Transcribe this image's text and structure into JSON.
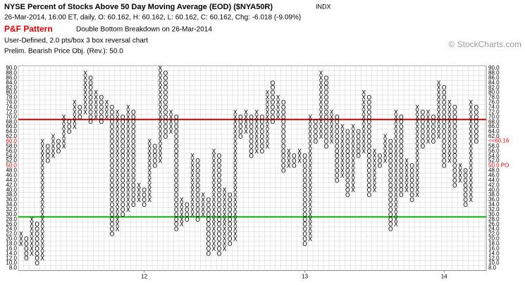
{
  "chart_data": {
    "type": "pointfigure",
    "title": "NYSE Percent of Stocks Above 50 Day Moving Average (EOD) ($NYA50R)",
    "exchange": "INDX",
    "subtitle": "26-Mar-2014, 16:00 ET, daily, O: 60.162, H: 60.162, L: 60.162, C: 60.162, Chg: -6.018 (-9.09%)",
    "pattern_label": "P&F Pattern",
    "pattern": "Double Bottom Breakdown on 26-Mar-2014",
    "settings_text": "User-Defined, 2.0 pts/box 3 box reversal chart",
    "objective_text": "Prelim. Bearish Price Obj. (Rev.): 50.0",
    "copyright": "© StockCharts.com",
    "box_size": 2,
    "ylim": [
      7,
      91
    ],
    "yticks": [
      {
        "value": 90,
        "label": "90.0"
      },
      {
        "value": 88,
        "label": "88.0"
      },
      {
        "value": 86,
        "label": "86.0"
      },
      {
        "value": 84,
        "label": "84.0"
      },
      {
        "value": 82,
        "label": "82.0"
      },
      {
        "value": 80,
        "label": "80.0"
      },
      {
        "value": 78,
        "label": "78.0"
      },
      {
        "value": 76,
        "label": "76.0"
      },
      {
        "value": 74,
        "label": "74.0"
      },
      {
        "value": 72,
        "label": "72.0"
      },
      {
        "value": 70,
        "label": "70.0"
      },
      {
        "value": 68,
        "label": "68.0"
      },
      {
        "value": 66,
        "label": "66.0"
      },
      {
        "value": 64,
        "label": "64.0"
      },
      {
        "value": 62,
        "label": "62.0"
      },
      {
        "value": 60,
        "label": "60.0"
      },
      {
        "value": 58,
        "label": "58.0"
      },
      {
        "value": 56,
        "label": "56.0"
      },
      {
        "value": 54,
        "label": "54.0"
      },
      {
        "value": 52,
        "label": "52.0"
      },
      {
        "value": 50,
        "label": "50.0"
      },
      {
        "value": 48,
        "label": "48.0"
      },
      {
        "value": 46,
        "label": "46.0"
      },
      {
        "value": 44,
        "label": "44.0"
      },
      {
        "value": 42,
        "label": "42.0"
      },
      {
        "value": 40,
        "label": "40.0"
      },
      {
        "value": 38,
        "label": "38.0"
      },
      {
        "value": 36,
        "label": "36.0"
      },
      {
        "value": 34,
        "label": "34.0"
      },
      {
        "value": 32,
        "label": "32.0"
      },
      {
        "value": 30,
        "label": "30.0"
      },
      {
        "value": 28,
        "label": "28.0"
      },
      {
        "value": 26,
        "label": "26.0"
      },
      {
        "value": 24,
        "label": "24.0"
      },
      {
        "value": 22,
        "label": "22.0"
      },
      {
        "value": 20,
        "label": "20.0"
      },
      {
        "value": 18,
        "label": "18.0"
      },
      {
        "value": 16,
        "label": "16.0"
      },
      {
        "value": 14,
        "label": "14.0"
      },
      {
        "value": 12,
        "label": "12.0"
      },
      {
        "value": 10,
        "label": "10.0"
      },
      {
        "value": 8,
        "label": "8.0"
      }
    ],
    "grid": true,
    "highlight": {
      "values": [
        60,
        50
      ],
      "color": "#e00000"
    },
    "reference_lines": [
      {
        "value": 69,
        "color": "#cc0000"
      },
      {
        "value": 29,
        "color": "#00bb00"
      }
    ],
    "annotations": [
      {
        "text": "<<60.16",
        "value": 60.16,
        "color": "#e00000"
      },
      {
        "text": "50.0 PO",
        "value": 50,
        "color": "#e00000"
      }
    ],
    "x_labels": [
      {
        "label": "12",
        "column": 23
      },
      {
        "label": "13",
        "column": 53
      },
      {
        "label": "14",
        "column": 79
      }
    ],
    "columns": [
      {
        "type": "X",
        "low": 18,
        "high": 22
      },
      {
        "type": "O",
        "low": 12,
        "high": 20
      },
      {
        "type": "X",
        "low": 14,
        "high": 28
      },
      {
        "type": "O",
        "low": 10,
        "high": 26
      },
      {
        "type": "X",
        "low": 12,
        "high": 60
      },
      {
        "type": "O",
        "low": 52,
        "high": 58
      },
      {
        "type": "X",
        "low": 54,
        "high": 62
      },
      {
        "type": "O",
        "low": 56,
        "high": 60
      },
      {
        "type": "X",
        "low": 58,
        "high": 70
      },
      {
        "type": "O",
        "low": 64,
        "high": 68
      },
      {
        "type": "X",
        "low": 66,
        "high": 76
      },
      {
        "type": "O",
        "low": 70,
        "high": 74
      },
      {
        "type": "X",
        "low": 72,
        "high": 88
      },
      {
        "type": "O",
        "low": 68,
        "high": 86
      },
      {
        "type": "X",
        "low": 70,
        "high": 80
      },
      {
        "type": "O",
        "low": 68,
        "high": 78
      },
      {
        "type": "X",
        "low": 70,
        "high": 76
      },
      {
        "type": "O",
        "low": 22,
        "high": 74
      },
      {
        "type": "X",
        "low": 24,
        "high": 72
      },
      {
        "type": "O",
        "low": 30,
        "high": 70
      },
      {
        "type": "X",
        "low": 32,
        "high": 74
      },
      {
        "type": "O",
        "low": 34,
        "high": 72
      },
      {
        "type": "X",
        "low": 36,
        "high": 42
      },
      {
        "type": "O",
        "low": 34,
        "high": 40
      },
      {
        "type": "X",
        "low": 36,
        "high": 60
      },
      {
        "type": "O",
        "low": 50,
        "high": 58
      },
      {
        "type": "X",
        "low": 52,
        "high": 90
      },
      {
        "type": "O",
        "low": 62,
        "high": 88
      },
      {
        "type": "X",
        "low": 64,
        "high": 72
      },
      {
        "type": "O",
        "low": 24,
        "high": 70
      },
      {
        "type": "X",
        "low": 26,
        "high": 36
      },
      {
        "type": "O",
        "low": 28,
        "high": 34
      },
      {
        "type": "X",
        "low": 30,
        "high": 54
      },
      {
        "type": "O",
        "low": 28,
        "high": 52
      },
      {
        "type": "X",
        "low": 30,
        "high": 38
      },
      {
        "type": "O",
        "low": 14,
        "high": 36
      },
      {
        "type": "X",
        "low": 16,
        "high": 56
      },
      {
        "type": "O",
        "low": 14,
        "high": 54
      },
      {
        "type": "X",
        "low": 16,
        "high": 40
      },
      {
        "type": "O",
        "low": 18,
        "high": 38
      },
      {
        "type": "X",
        "low": 20,
        "high": 72
      },
      {
        "type": "O",
        "low": 62,
        "high": 70
      },
      {
        "type": "X",
        "low": 64,
        "high": 72
      },
      {
        "type": "O",
        "low": 54,
        "high": 70
      },
      {
        "type": "X",
        "low": 56,
        "high": 72
      },
      {
        "type": "O",
        "low": 56,
        "high": 70
      },
      {
        "type": "X",
        "low": 58,
        "high": 80
      },
      {
        "type": "O",
        "low": 68,
        "high": 84
      },
      {
        "type": "X",
        "low": 70,
        "high": 78
      },
      {
        "type": "O",
        "low": 48,
        "high": 76
      },
      {
        "type": "X",
        "low": 50,
        "high": 56
      },
      {
        "type": "O",
        "low": 50,
        "high": 54
      },
      {
        "type": "X",
        "low": 52,
        "high": 56
      },
      {
        "type": "O",
        "low": 18,
        "high": 54
      },
      {
        "type": "X",
        "low": 20,
        "high": 70
      },
      {
        "type": "O",
        "low": 60,
        "high": 68
      },
      {
        "type": "X",
        "low": 62,
        "high": 88
      },
      {
        "type": "O",
        "low": 58,
        "high": 86
      },
      {
        "type": "X",
        "low": 60,
        "high": 72
      },
      {
        "type": "O",
        "low": 44,
        "high": 70
      },
      {
        "type": "X",
        "low": 46,
        "high": 66
      },
      {
        "type": "O",
        "low": 38,
        "high": 64
      },
      {
        "type": "X",
        "low": 40,
        "high": 66
      },
      {
        "type": "O",
        "low": 54,
        "high": 64
      },
      {
        "type": "X",
        "low": 56,
        "high": 80
      },
      {
        "type": "O",
        "low": 38,
        "high": 78
      },
      {
        "type": "X",
        "low": 40,
        "high": 56
      },
      {
        "type": "O",
        "low": 50,
        "high": 54
      },
      {
        "type": "X",
        "low": 52,
        "high": 62
      },
      {
        "type": "O",
        "low": 24,
        "high": 60
      },
      {
        "type": "X",
        "low": 26,
        "high": 72
      },
      {
        "type": "O",
        "low": 38,
        "high": 70
      },
      {
        "type": "X",
        "low": 40,
        "high": 52
      },
      {
        "type": "O",
        "low": 36,
        "high": 50
      },
      {
        "type": "X",
        "low": 38,
        "high": 74
      },
      {
        "type": "O",
        "low": 58,
        "high": 72
      },
      {
        "type": "X",
        "low": 60,
        "high": 72
      },
      {
        "type": "O",
        "low": 60,
        "high": 70
      },
      {
        "type": "X",
        "low": 62,
        "high": 84
      },
      {
        "type": "O",
        "low": 50,
        "high": 82
      },
      {
        "type": "X",
        "low": 52,
        "high": 76
      },
      {
        "type": "O",
        "low": 42,
        "high": 74
      },
      {
        "type": "X",
        "low": 44,
        "high": 50
      },
      {
        "type": "O",
        "low": 34,
        "high": 48
      },
      {
        "type": "X",
        "low": 36,
        "high": 76
      },
      {
        "type": "O",
        "low": 60,
        "high": 74
      }
    ]
  }
}
